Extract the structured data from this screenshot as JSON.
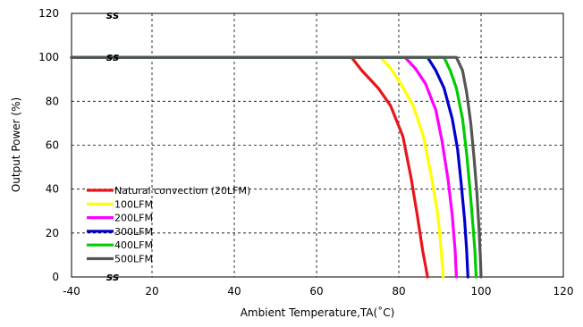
{
  "chart_data": {
    "type": "line",
    "xlabel": "Ambient Temperature,TA(˚C)",
    "ylabel": "Output Power (%)",
    "xlim": [
      -40,
      120
    ],
    "ylim": [
      0,
      120
    ],
    "x_ticks": [
      "-40",
      "20",
      "40",
      "60",
      "80",
      "100",
      "120"
    ],
    "y_ticks": [
      "0",
      "20",
      "40",
      "60",
      "80",
      "100",
      "120"
    ],
    "x_axis_break": "ss",
    "grid": true,
    "legend_placement": "bottom-left",
    "series": [
      {
        "name": "Natural convection (20LFM)",
        "color": "#e8151b",
        "x": [
          -40,
          68.5,
          71,
          75,
          78,
          81,
          83,
          84.5,
          85.8,
          87
        ],
        "y": [
          100,
          100,
          94,
          86,
          78,
          64,
          45,
          28,
          12,
          0
        ]
      },
      {
        "name": "100LFM",
        "color": "#ffff00",
        "x": [
          -40,
          75.5,
          78,
          80.5,
          83.5,
          86,
          88,
          89.5,
          90.3,
          90.8
        ],
        "y": [
          100,
          100,
          95,
          88,
          78,
          64,
          45,
          28,
          12,
          0
        ]
      },
      {
        "name": "200LFM",
        "color": "#ff00ff",
        "x": [
          -40,
          81.5,
          84,
          86.5,
          89,
          90.5,
          92,
          93,
          93.7,
          94
        ],
        "y": [
          100,
          100,
          95,
          88,
          76,
          62,
          44,
          28,
          12,
          0
        ]
      },
      {
        "name": "300LFM",
        "color": "#0000cc",
        "x": [
          -40,
          87,
          89,
          91,
          93,
          94.3,
          95.2,
          96,
          96.5,
          96.8
        ],
        "y": [
          100,
          100,
          94,
          86,
          72,
          58,
          42,
          26,
          12,
          0
        ]
      },
      {
        "name": "400LFM",
        "color": "#00cc00",
        "x": [
          -40,
          91,
          92.5,
          94,
          95.5,
          96.5,
          97.3,
          98,
          98.5,
          98.8
        ],
        "y": [
          100,
          100,
          94,
          86,
          72,
          56,
          40,
          24,
          12,
          0
        ]
      },
      {
        "name": "500LFM",
        "color": "#555555",
        "x": [
          -40,
          94,
          95.5,
          96.5,
          97.5,
          98.3,
          99,
          99.5,
          99.8,
          100
        ],
        "y": [
          100,
          100,
          94,
          84,
          70,
          54,
          38,
          22,
          10,
          0
        ]
      }
    ]
  }
}
